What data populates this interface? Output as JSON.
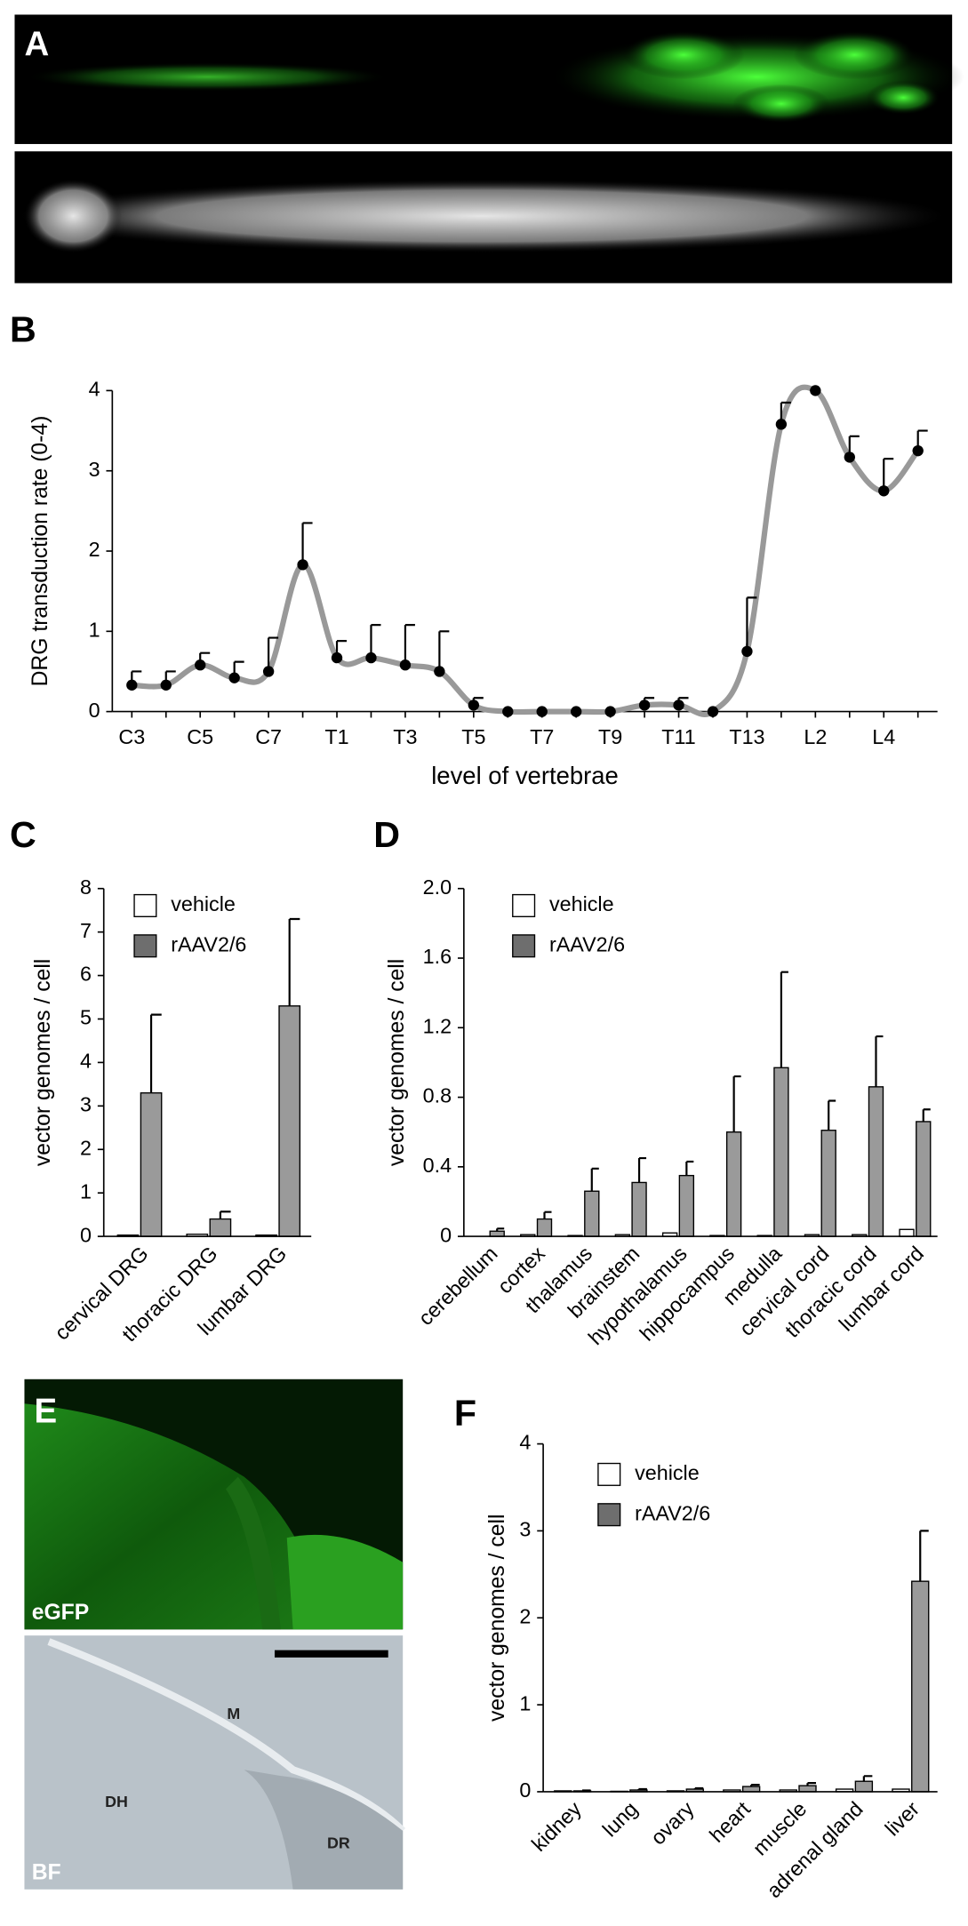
{
  "panel_labels": [
    "A",
    "B",
    "C",
    "D",
    "E",
    "F"
  ],
  "image_labels": [
    "eGFP",
    "BF",
    "M",
    "DH",
    "DR"
  ],
  "chart_data": [
    {
      "type": "line",
      "categories": [
        "C3",
        null,
        "C5",
        null,
        "C7",
        null,
        "T1",
        null,
        "T3",
        null,
        "T5",
        null,
        "T7",
        null,
        "T9",
        null,
        "T11",
        null,
        "T13",
        null,
        "L2",
        null,
        "L4",
        null
      ],
      "values": [
        0.33,
        0.33,
        0.58,
        0.42,
        0.5,
        1.83,
        0.67,
        0.67,
        0.58,
        0.5,
        0.08,
        0,
        0,
        0,
        0,
        0.08,
        0.08,
        0,
        0.75,
        3.58,
        4.0,
        3.17,
        2.75,
        3.25
      ],
      "errors": [
        0.17,
        0.17,
        0.15,
        0.2,
        0.42,
        0.52,
        0.21,
        0.41,
        0.5,
        0.5,
        0.09,
        0,
        0,
        0,
        0,
        0.09,
        0.09,
        0,
        0.67,
        0.27,
        0,
        0.26,
        0.4,
        0.25
      ],
      "color": "#999999",
      "marker_color": "#000000",
      "ylabel": "DRG transduction rate (0-4)",
      "xlabel": "level of vertebrae",
      "ylim": [
        0,
        4
      ],
      "yticks": [
        0,
        1,
        2,
        3,
        4
      ]
    },
    {
      "type": "bar",
      "categories": [
        "cervical DRG",
        "thoracic DRG",
        "lumbar DRG"
      ],
      "series": [
        {
          "name": "vehicle",
          "color": "#ffffff",
          "values": [
            0.03,
            0.05,
            0.03
          ]
        },
        {
          "name": "rAAV2/6",
          "color": "#9a9a9a",
          "values": [
            3.3,
            0.4,
            5.3
          ],
          "errors": [
            1.8,
            0.17,
            2.0
          ]
        }
      ],
      "ylabel": "vector genomes / cell",
      "ylim": [
        0,
        8
      ],
      "yticks": [
        0,
        1,
        2,
        3,
        4,
        5,
        6,
        7,
        8
      ]
    },
    {
      "type": "bar",
      "categories": [
        "cerebellum",
        "cortex",
        "thalamus",
        "brainstem",
        "hypothalamus",
        "hippocampus",
        "medulla",
        "cervical cord",
        "thoracic cord",
        "lumbar cord"
      ],
      "series": [
        {
          "name": "vehicle",
          "color": "#ffffff",
          "values": [
            0,
            0.01,
            0.005,
            0.01,
            0.02,
            0.005,
            0.005,
            0.01,
            0.01,
            0.04
          ]
        },
        {
          "name": "rAAV2/6",
          "color": "#9a9a9a",
          "values": [
            0.03,
            0.1,
            0.26,
            0.31,
            0.35,
            0.6,
            0.97,
            0.61,
            0.86,
            0.66
          ],
          "errors": [
            0.015,
            0.04,
            0.13,
            0.14,
            0.08,
            0.32,
            0.55,
            0.17,
            0.29,
            0.07
          ]
        }
      ],
      "ylabel": "vector genomes / cell",
      "ylim": [
        0,
        2
      ],
      "yticks": [
        0,
        0.4,
        0.8,
        1.2,
        1.6,
        {
          "value": 2,
          "label": "2.0"
        }
      ]
    },
    {
      "type": "bar",
      "categories": [
        "kidney",
        "lung",
        "ovary",
        "heart",
        "muscle",
        "adrenal gland",
        "liver"
      ],
      "series": [
        {
          "name": "vehicle",
          "color": "#ffffff",
          "values": [
            0.01,
            0.005,
            0.01,
            0.02,
            0.02,
            0.03,
            0.03
          ]
        },
        {
          "name": "rAAV2/6",
          "color": "#9a9a9a",
          "values": [
            0.01,
            0.02,
            0.03,
            0.06,
            0.07,
            0.12,
            2.42
          ],
          "errors": [
            0.005,
            0.01,
            0.01,
            0.02,
            0.03,
            0.06,
            0.58
          ]
        }
      ],
      "ylabel": "vector genomes / cell",
      "ylim": [
        0,
        4
      ],
      "yticks": [
        0,
        1,
        2,
        3,
        4
      ]
    }
  ]
}
